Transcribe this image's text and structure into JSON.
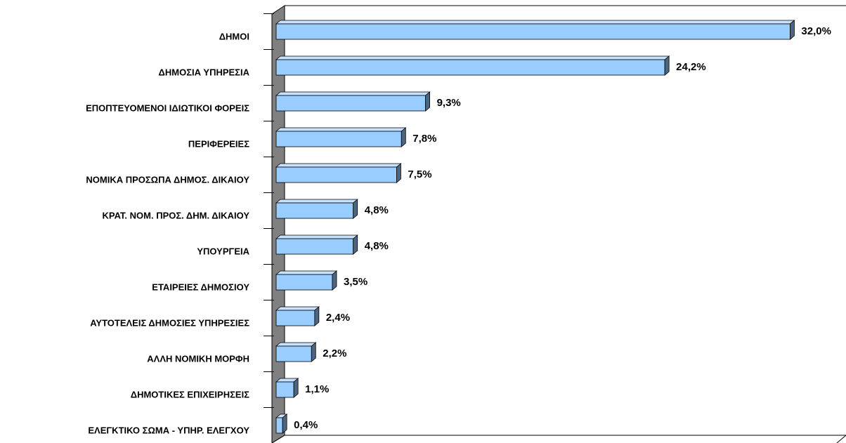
{
  "chart_data": {
    "type": "bar",
    "orientation": "horizontal",
    "categories": [
      "ΔΗΜΟΙ",
      "ΔΗΜΟΣΙΑ ΥΠΗΡΕΣΙΑ",
      "ΕΠΟΠΤΕΥΟΜΕΝΟΙ ΙΔΙΩΤΙΚΟΙ ΦΟΡΕΙΣ",
      "ΠΕΡΙΦΕΡΕΙΕΣ",
      "ΝΟΜΙΚΑ ΠΡΟΣΩΠΑ ΔΗΜΟΣ. ΔΙΚΑΙΟΥ",
      "ΚΡΑΤ. ΝΟΜ. ΠΡΟΣ. ΔΗΜ. ΔΙΚΑΙΟΥ",
      "ΥΠΟΥΡΓΕΙΑ",
      "ΕΤΑΙΡΕΙΕΣ ΔΗΜΟΣΙΟΥ",
      "ΑΥΤΟΤΕΛΕΙΣ ΔΗΜΟΣΙΕΣ ΥΠΗΡΕΣΙΕΣ",
      "ΑΛΛΗ ΝΟΜΙΚΗ ΜΟΡΦΗ",
      "ΔΗΜΟΤΙΚΕΣ ΕΠΙΧΕΙΡΗΣΕΙΣ",
      "ΕΛΕΓΚΤΙΚΟ ΣΩΜΑ - ΥΠΗΡ. ΕΛΕΓΧΟΥ"
    ],
    "values": [
      32.0,
      24.2,
      9.3,
      7.8,
      7.5,
      4.8,
      4.8,
      3.5,
      2.4,
      2.2,
      1.1,
      0.4
    ],
    "value_labels": [
      "32,0%",
      "24,2%",
      "9,3%",
      "7,8%",
      "7,5%",
      "4,8%",
      "4,8%",
      "3,5%",
      "2,4%",
      "2,2%",
      "1,1%",
      "0,4%"
    ],
    "color": "#99ccff",
    "xlim": [
      0,
      35
    ]
  }
}
